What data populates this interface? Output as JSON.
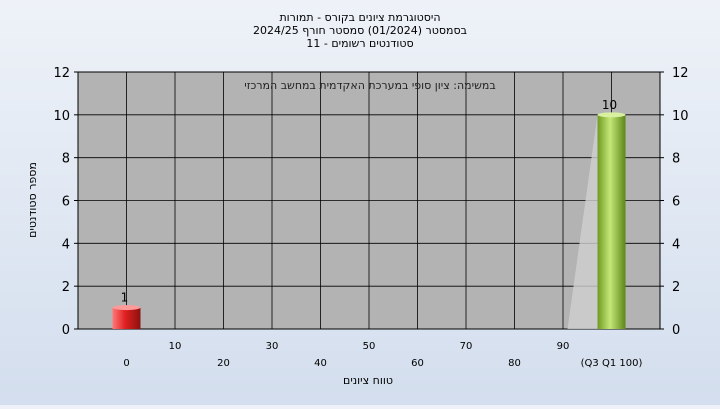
{
  "chart_data": {
    "type": "bar",
    "title_lines": [
      "היסטוגרמת ציונים בקורס - תמורות",
      "בסמסטר (01/2024) סמסטר חורף 2024/25",
      "סטודנטים רשומים - 11"
    ],
    "annotation": "במשימה: ציון סופי במערכת האקדמית במחשב המרכזי",
    "xlabel": "טווח ציונים",
    "ylabel": "מספר סטודנטים",
    "x_tick_labels": [
      "0",
      "10",
      "20",
      "30",
      "40",
      "50",
      "60",
      "70",
      "80",
      "90",
      "(Q3 Q1 100)"
    ],
    "y_ticks": [
      0,
      2,
      4,
      6,
      8,
      10,
      12
    ],
    "ylim": [
      0,
      12
    ],
    "grid": true,
    "bars": [
      {
        "category": "0",
        "value": 1,
        "label": "1",
        "color": "#e03030"
      },
      {
        "category": "100",
        "value": 10,
        "label": "10",
        "color": "#9ccc3c"
      }
    ],
    "plot_background": "#b3b3b3"
  }
}
